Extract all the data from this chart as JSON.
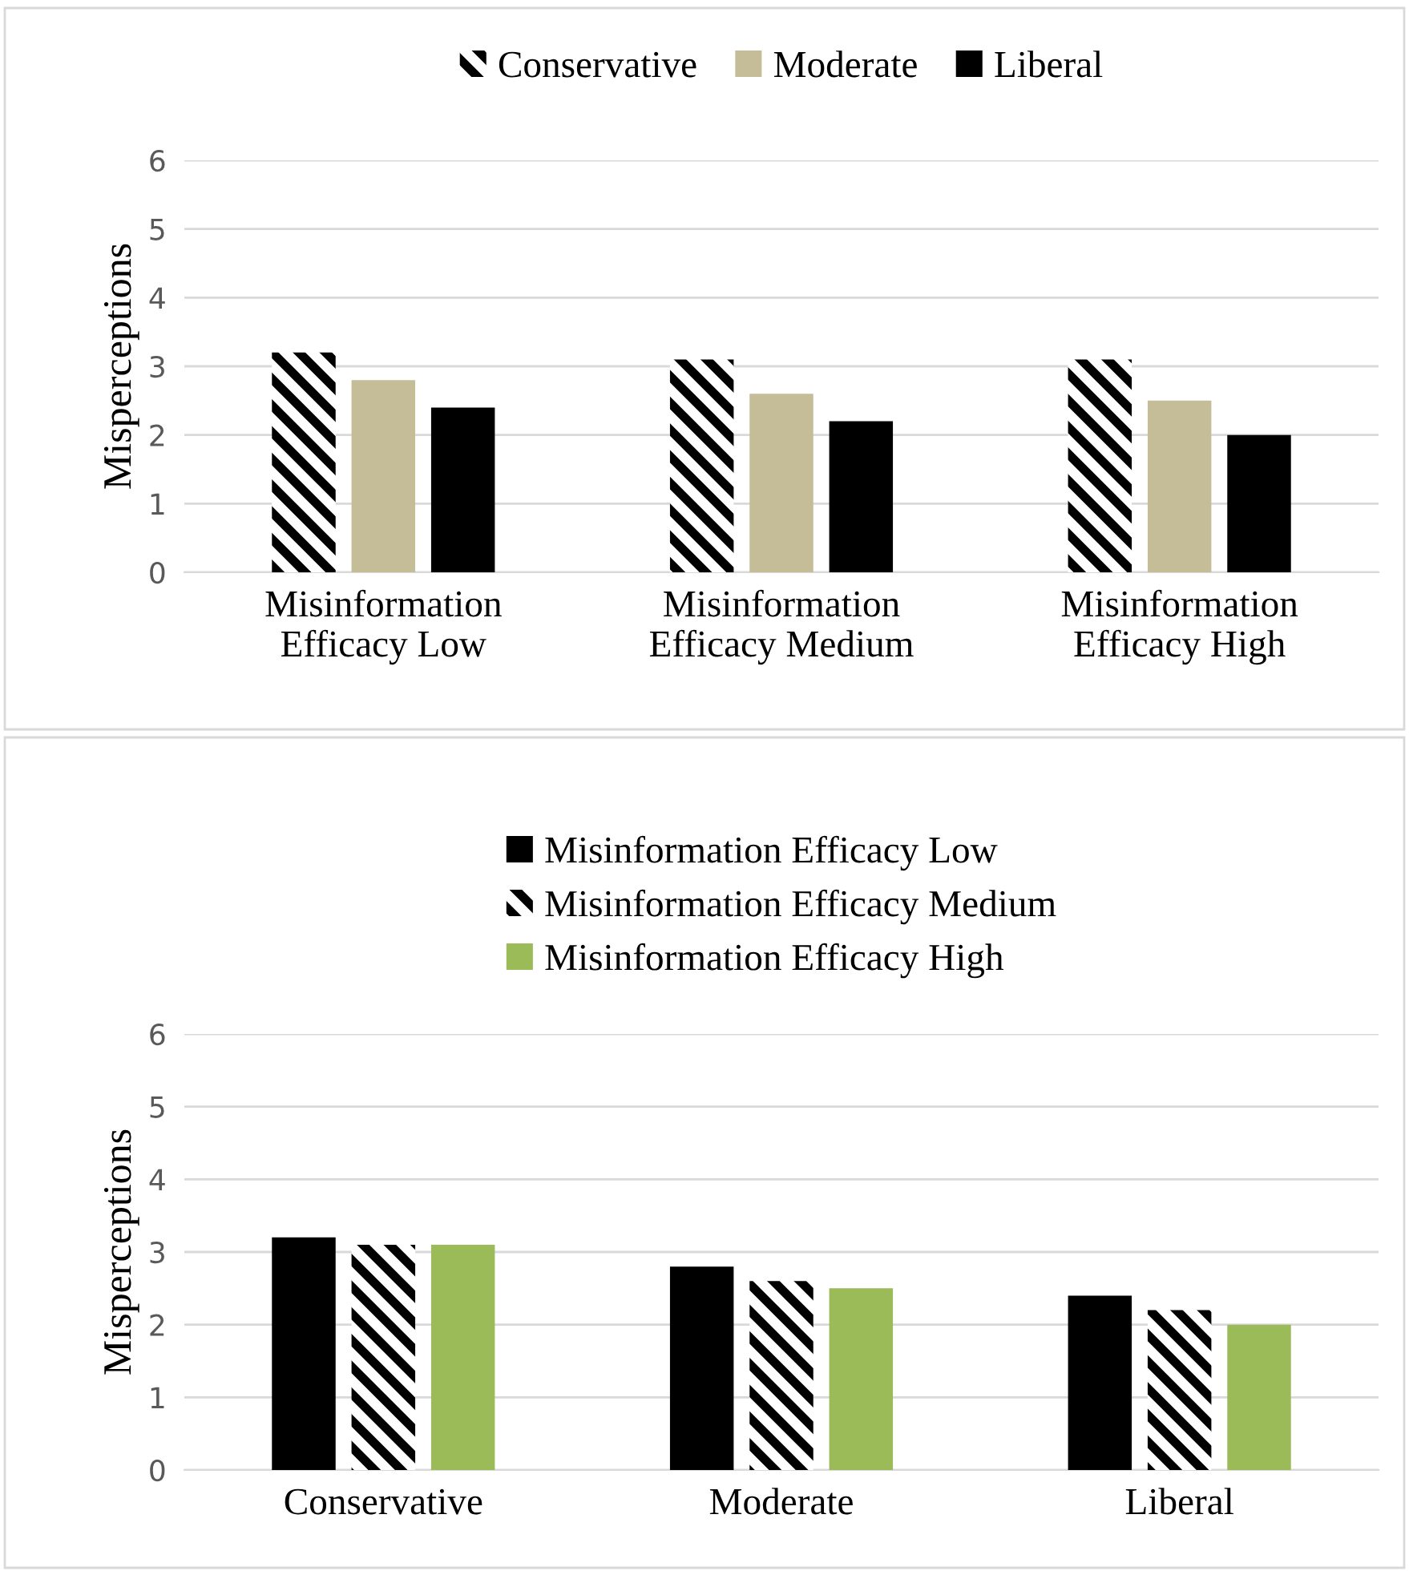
{
  "chart_data": [
    {
      "type": "bar",
      "categories": [
        "Misinformation\nEfficacy Low",
        "Misinformation\nEfficacy Medium",
        "Misinformation\nEfficacy High"
      ],
      "ylabel": "Misperceptions",
      "ylim": [
        0,
        6
      ],
      "yticks": [
        0,
        1,
        2,
        3,
        4,
        5,
        6
      ],
      "grid": "y",
      "legend": "top",
      "series": [
        {
          "name": "Conservative",
          "color": "#ffffff",
          "values": [
            3.2,
            3.1,
            3.1
          ]
        },
        {
          "name": "Moderate",
          "color": "#c4bd97",
          "values": [
            2.8,
            2.6,
            2.5
          ]
        },
        {
          "name": "Liberal",
          "color": "#000000",
          "values": [
            2.4,
            2.2,
            2.0
          ]
        }
      ]
    },
    {
      "type": "bar",
      "categories": [
        "Conservative",
        "Moderate",
        "Liberal"
      ],
      "ylabel": "Misperceptions",
      "ylim": [
        0,
        6
      ],
      "yticks": [
        0,
        1,
        2,
        3,
        4,
        5,
        6
      ],
      "grid": "y",
      "legend": "top",
      "series": [
        {
          "name": "Misinformation Efficacy Low",
          "color": "#000000",
          "values": [
            3.2,
            2.8,
            2.4
          ]
        },
        {
          "name": "Misinformation Efficacy Medium",
          "color": "#ffffff",
          "values": [
            3.1,
            2.6,
            2.2
          ]
        },
        {
          "name": "Misinformation Efficacy High",
          "color": "#9bbb59",
          "values": [
            3.1,
            2.5,
            2.0
          ]
        }
      ]
    }
  ]
}
